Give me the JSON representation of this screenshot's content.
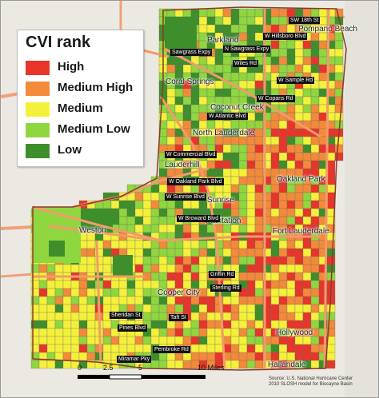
{
  "legend": {
    "title": "CVI rank",
    "items": [
      {
        "label": "High",
        "color": "#e8352a"
      },
      {
        "label": "Medium High",
        "color": "#f28a3a"
      },
      {
        "label": "Medium",
        "color": "#f5f03a"
      },
      {
        "label": "Medium Low",
        "color": "#90d63e"
      },
      {
        "label": "Low",
        "color": "#3e8f2c"
      }
    ]
  },
  "places": [
    "Parkland",
    "Coral Springs",
    "Coconut Creek",
    "North Lauderdale",
    "Lauderhill",
    "Oakland Park",
    "Sunrise",
    "Plantation",
    "Fort Lauderdale",
    "Weston",
    "Cooper City",
    "Hollywood",
    "Hallandale",
    "Pompano Beach"
  ],
  "roads": [
    "SW 18th St",
    "W Hillsboro Blvd",
    "Sawgrass Expy",
    "N Sawgrass Expy",
    "Wiles Rd",
    "W Sample Rd",
    "W Copans Rd",
    "W Atlantic Blvd",
    "W Commercial Blvd",
    "W Oakland Park Blvd",
    "W Sunrise Blvd",
    "W Broward Blvd",
    "Griffin Rd",
    "Sterling Rd",
    "Sheridan St",
    "Pines Blvd",
    "Taft St",
    "Pembroke Rd",
    "Miramar Pky"
  ],
  "scale": {
    "ticks": [
      "0",
      "2.5",
      "5",
      "10 Miles"
    ]
  },
  "source": [
    "Source: U.S. National Hurricane Center",
    "2010 SLOSH model for Biscayne Basin"
  ],
  "colors": {
    "water": "#e9e6df",
    "land_outside": "#efeee9",
    "road": "#f39a6b"
  }
}
